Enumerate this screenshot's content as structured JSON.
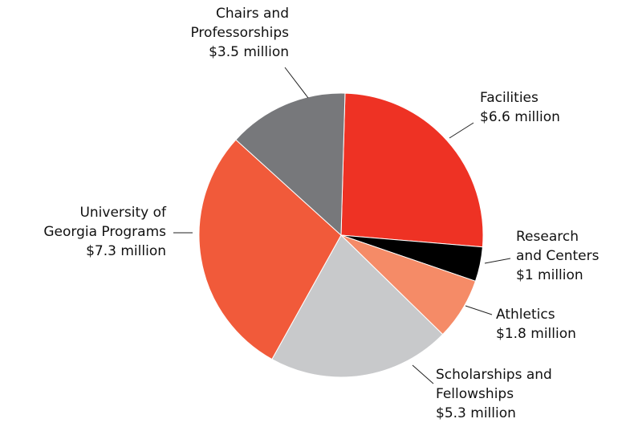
{
  "chart_data": {
    "type": "pie",
    "categories": [
      "Facilities",
      "Research\nand Centers",
      "Athletics",
      "Scholarships and\nFellowships",
      "University of\nGeorgia Programs",
      "Chairs and\nProfessorships"
    ],
    "values": [
      6.6,
      1,
      1.8,
      5.3,
      7.3,
      3.5
    ],
    "value_labels": [
      "$6.6 million",
      "$1 million",
      "$1.8 million",
      "$5.3 million",
      "$7.3 million",
      "$3.5 million"
    ],
    "colors": [
      "#ee3224",
      "#000000",
      "#f58b67",
      "#c8c9cb",
      "#f15a3a",
      "#77787b"
    ]
  }
}
